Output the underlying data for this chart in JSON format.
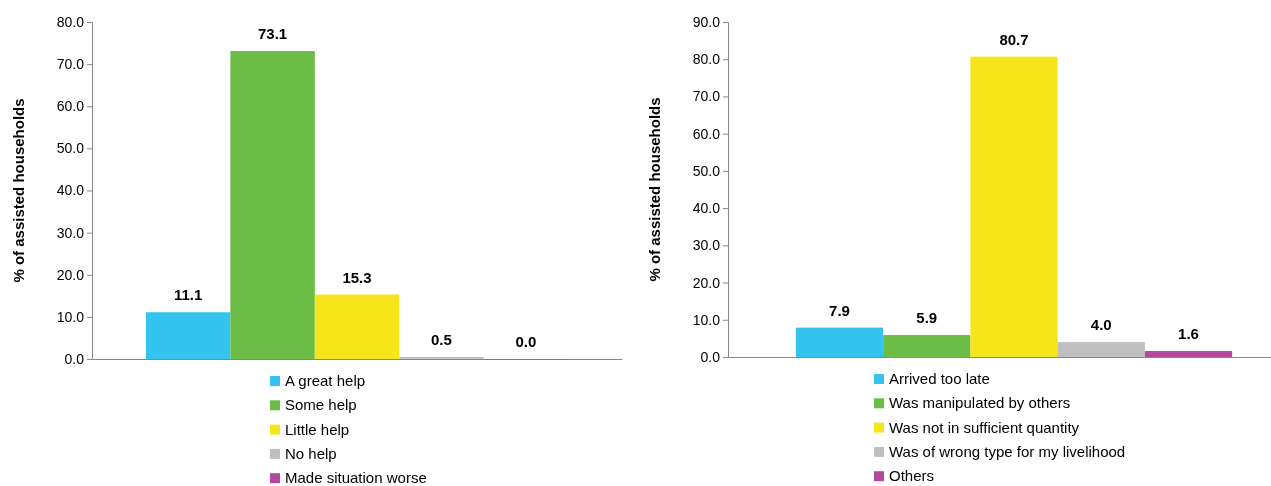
{
  "chart_data": [
    {
      "type": "bar",
      "ylabel": "% of assisted households",
      "categories": [
        null
      ],
      "ylim": [
        0,
        80
      ],
      "yticks": [
        {
          "value": 0,
          "label": "0.0"
        },
        {
          "value": 10,
          "label": "10.0"
        },
        {
          "value": 20,
          "label": "20.0"
        },
        {
          "value": 30,
          "label": "30.0"
        },
        {
          "value": 40,
          "label": "40.0"
        },
        {
          "value": 50,
          "label": "50.0"
        },
        {
          "value": 60,
          "label": "60.0"
        },
        {
          "value": 70,
          "label": "70.0"
        },
        {
          "value": 80,
          "label": "80.0"
        }
      ],
      "legend": "bottom",
      "grid": false,
      "series": [
        {
          "name": "A great help",
          "color": "#35c4f0",
          "values": [
            11.1
          ],
          "value_labels": [
            "11.1"
          ]
        },
        {
          "name": "Some help",
          "color": "#6bbd45",
          "values": [
            73.1
          ],
          "value_labels": [
            "73.1"
          ]
        },
        {
          "name": "Little help",
          "color": "#f5e61b",
          "values": [
            15.3
          ],
          "value_labels": [
            "15.3"
          ]
        },
        {
          "name": "No help",
          "color": "#bfbfbf",
          "values": [
            0.5
          ],
          "value_labels": [
            "0.5"
          ]
        },
        {
          "name": "Made situation worse",
          "color": "#b5489b",
          "values": [
            0.0
          ],
          "value_labels": [
            "0.0"
          ]
        }
      ]
    },
    {
      "type": "bar",
      "ylabel": "% of assisted households",
      "categories": [
        null
      ],
      "ylim": [
        0,
        90
      ],
      "yticks": [
        {
          "value": 0,
          "label": "0.0"
        },
        {
          "value": 10,
          "label": "10.0"
        },
        {
          "value": 20,
          "label": "20.0"
        },
        {
          "value": 30,
          "label": "30.0"
        },
        {
          "value": 40,
          "label": "40.0"
        },
        {
          "value": 50,
          "label": "50.0"
        },
        {
          "value": 60,
          "label": "60.0"
        },
        {
          "value": 70,
          "label": "70.0"
        },
        {
          "value": 80,
          "label": "80.0"
        },
        {
          "value": 90,
          "label": "90.0"
        }
      ],
      "legend": "bottom",
      "grid": false,
      "series": [
        {
          "name": "Arrived too late",
          "color": "#35c4f0",
          "values": [
            7.9
          ],
          "value_labels": [
            "7.9"
          ]
        },
        {
          "name": "Was manipulated by others",
          "color": "#6bbd45",
          "values": [
            5.9
          ],
          "value_labels": [
            "5.9"
          ]
        },
        {
          "name": "Was not in sufficient quantity",
          "color": "#f5e61b",
          "values": [
            80.7
          ],
          "value_labels": [
            "80.7"
          ]
        },
        {
          "name": "Was of wrong type for my livelihood",
          "color": "#bfbfbf",
          "values": [
            4.0
          ],
          "value_labels": [
            "4.0"
          ]
        },
        {
          "name": "Others",
          "color": "#b5489b",
          "values": [
            1.6
          ],
          "value_labels": [
            "1.6"
          ]
        }
      ]
    }
  ]
}
